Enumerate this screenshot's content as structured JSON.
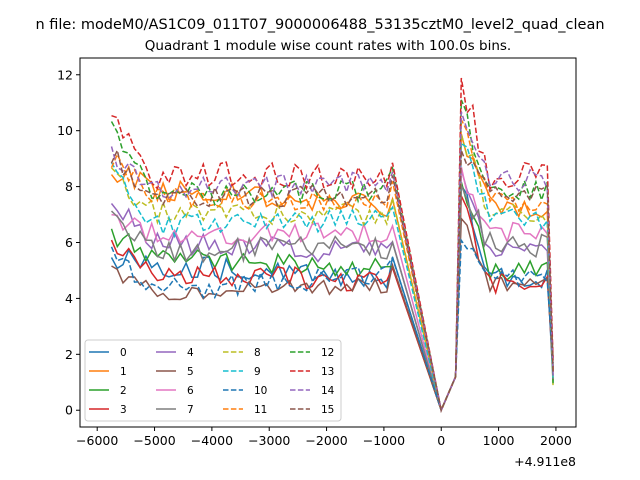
{
  "figure": {
    "suptitle": "n file: modeM0/AS1C09_011T07_9000006488_53135cztM0_level2_quad_clean",
    "offset_label": "+4.911e8"
  },
  "chart_data": {
    "type": "line",
    "title": "Quadrant 1 module wise count rates with 100.0s bins.",
    "xlabel": "",
    "ylabel": "",
    "xlim": [
      -6300,
      2350
    ],
    "ylim": [
      -0.6,
      12.6
    ],
    "x_ticks": [
      -6000,
      -5000,
      -4000,
      -3000,
      -2000,
      -1000,
      0,
      1000,
      2000
    ],
    "y_ticks": [
      0,
      2,
      4,
      6,
      8,
      10,
      12
    ],
    "grid": false,
    "legend": {
      "placement": "lower-left",
      "columns": 4
    },
    "x_segments": [
      {
        "start": -5750,
        "step": 100,
        "count": 50
      },
      {
        "start": 0,
        "step": 100,
        "count": 1
      },
      {
        "start": 250,
        "step": 100,
        "count": 18
      }
    ],
    "series": [
      {
        "name": "0",
        "color": "#1f77b4",
        "dash": "solid",
        "level1": 5.5,
        "level2": 5.2,
        "level3": 4.7,
        "peak": 8.0,
        "noise": 0.4
      },
      {
        "name": "1",
        "color": "#ff7f0e",
        "dash": "solid",
        "level1": 8.6,
        "level2": 7.9,
        "level3": 7.3,
        "peak": 9.8,
        "noise": 0.4
      },
      {
        "name": "2",
        "color": "#2ca02c",
        "dash": "solid",
        "level1": 6.3,
        "level2": 5.5,
        "level3": 5.0,
        "peak": 8.3,
        "noise": 0.4
      },
      {
        "name": "3",
        "color": "#d62728",
        "dash": "solid",
        "level1": 5.9,
        "level2": 4.9,
        "level3": 4.6,
        "peak": 7.5,
        "noise": 0.4
      },
      {
        "name": "4",
        "color": "#9467bd",
        "dash": "solid",
        "level1": 7.4,
        "level2": 6.0,
        "level3": 5.6,
        "peak": 8.8,
        "noise": 0.4
      },
      {
        "name": "5",
        "color": "#8c564b",
        "dash": "solid",
        "level1": 5.0,
        "level2": 4.2,
        "level3": 4.5,
        "peak": 7.0,
        "noise": 0.3
      },
      {
        "name": "6",
        "color": "#e377c2",
        "dash": "solid",
        "level1": 7.0,
        "level2": 6.3,
        "level3": 6.4,
        "peak": 8.6,
        "noise": 0.4
      },
      {
        "name": "7",
        "color": "#7f7f7f",
        "dash": "solid",
        "level1": 7.1,
        "level2": 5.6,
        "level3": 5.9,
        "peak": 8.1,
        "noise": 0.5
      },
      {
        "name": "8",
        "color": "#bcbd22",
        "dash": "dashed",
        "level1": 8.3,
        "level2": 7.1,
        "level3": 7.0,
        "peak": 10.0,
        "noise": 0.4
      },
      {
        "name": "9",
        "color": "#17becf",
        "dash": "dashed",
        "level1": 8.6,
        "level2": 6.6,
        "level3": 6.8,
        "peak": 9.6,
        "noise": 0.4
      },
      {
        "name": "10",
        "color": "#1f77b4",
        "dash": "dashed",
        "level1": 5.6,
        "level2": 4.3,
        "level3": 4.8,
        "peak": 6.0,
        "noise": 0.4
      },
      {
        "name": "11",
        "color": "#ff7f0e",
        "dash": "dashed",
        "level1": 9.0,
        "level2": 7.6,
        "level3": 7.5,
        "peak": 10.2,
        "noise": 0.4
      },
      {
        "name": "12",
        "color": "#2ca02c",
        "dash": "dashed",
        "level1": 10.2,
        "level2": 7.7,
        "level3": 7.9,
        "peak": 10.9,
        "noise": 0.4
      },
      {
        "name": "13",
        "color": "#d62728",
        "dash": "dashed",
        "level1": 10.5,
        "level2": 8.4,
        "level3": 8.4,
        "peak": 11.8,
        "noise": 0.5
      },
      {
        "name": "14",
        "color": "#9467bd",
        "dash": "dashed",
        "level1": 9.2,
        "level2": 7.9,
        "level3": 8.2,
        "peak": 10.5,
        "noise": 0.4
      },
      {
        "name": "15",
        "color": "#8c564b",
        "dash": "dashed",
        "level1": 9.2,
        "level2": 7.6,
        "level3": 7.7,
        "peak": 9.4,
        "noise": 0.4
      }
    ]
  }
}
